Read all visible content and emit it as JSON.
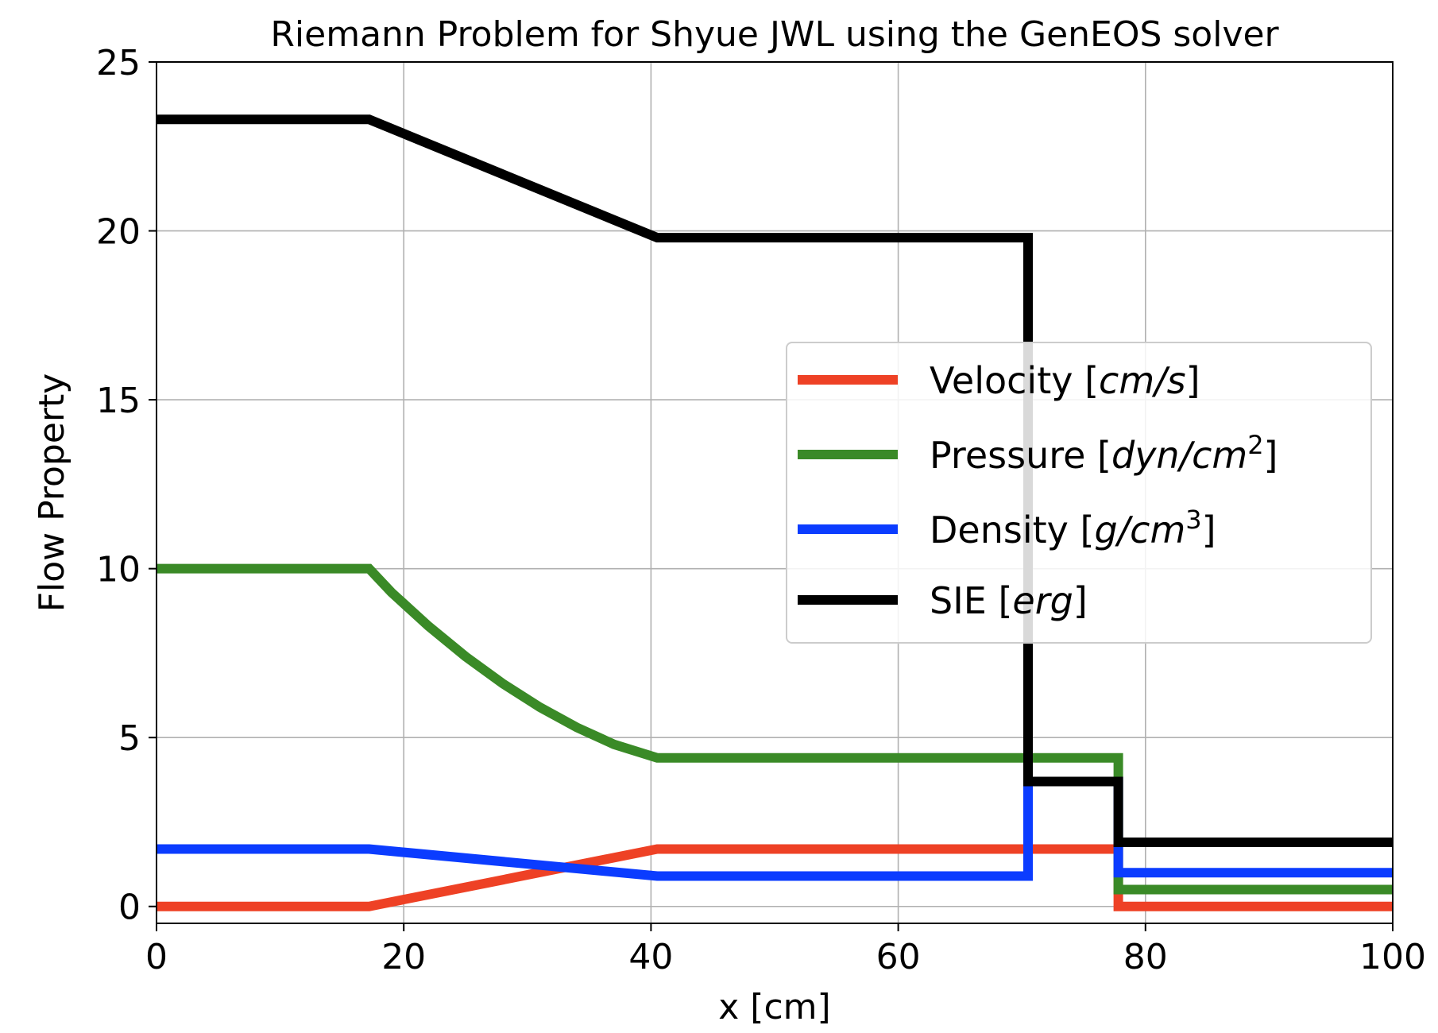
{
  "chart_data": {
    "type": "line",
    "title": "Riemann Problem for Shyue JWL using the GenEOS solver",
    "xlabel": "x [cm]",
    "ylabel": "Flow Property",
    "xlim": [
      0,
      100
    ],
    "ylim": [
      -0.5,
      25
    ],
    "xticks": [
      0,
      20,
      40,
      60,
      80,
      100
    ],
    "yticks": [
      0,
      5,
      10,
      15,
      20,
      25
    ],
    "xtick_labels": [
      "0",
      "20",
      "40",
      "60",
      "80",
      "100"
    ],
    "ytick_labels": [
      "0",
      "5",
      "10",
      "15",
      "20",
      "25"
    ],
    "grid": true,
    "legend_position": "center-right",
    "series": [
      {
        "name": "Velocity",
        "legend_unit": "cm/s",
        "legend_sup": "",
        "color": "#ee4125",
        "x": [
          0,
          17.2,
          40.5,
          77.8,
          77.8,
          100
        ],
        "y": [
          0,
          0,
          1.7,
          1.7,
          0,
          0
        ]
      },
      {
        "name": "Pressure",
        "legend_unit": "dyn/cm",
        "legend_sup": "2",
        "color": "#3a8a27",
        "x": [
          0,
          17.2,
          19,
          22,
          25,
          28,
          31,
          34,
          37,
          40.5,
          77.8,
          77.8,
          100
        ],
        "y": [
          10,
          10,
          9.3,
          8.3,
          7.4,
          6.6,
          5.9,
          5.3,
          4.8,
          4.4,
          4.4,
          0.5,
          0.5
        ]
      },
      {
        "name": "Density",
        "legend_unit": "g/cm",
        "legend_sup": "3",
        "color": "#0b3cff",
        "x": [
          0,
          17.2,
          40.5,
          70.5,
          70.5,
          77.8,
          77.8,
          100
        ],
        "y": [
          1.7,
          1.7,
          0.9,
          0.9,
          3.7,
          3.7,
          1.0,
          1.0
        ]
      },
      {
        "name": "SIE",
        "legend_unit": "erg",
        "legend_sup": "",
        "color": "#000000",
        "x": [
          0,
          17.2,
          40.5,
          70.5,
          70.5,
          77.8,
          77.8,
          100
        ],
        "y": [
          23.3,
          23.3,
          19.8,
          19.8,
          3.7,
          3.7,
          1.9,
          1.9
        ]
      }
    ]
  }
}
